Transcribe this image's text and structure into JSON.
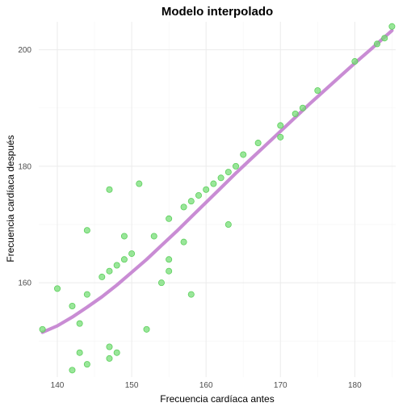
{
  "chart_data": {
    "type": "scatter",
    "title": "Modelo interpolado",
    "xlabel": "Frecuencia cardíaca antes",
    "ylabel": "Frecuencia cardíaca después",
    "xlim": [
      137.5,
      185.5
    ],
    "ylim": [
      143.8,
      204.8
    ],
    "x_ticks": [
      140,
      150,
      160,
      170,
      180
    ],
    "y_ticks": [
      160,
      180,
      200
    ],
    "grid": true,
    "legend": "none",
    "colors": {
      "points": "#77dd77",
      "points_edge": "#5ccf5c",
      "line": "#c37fcf"
    },
    "points": [
      {
        "x": 138,
        "y": 152
      },
      {
        "x": 140,
        "y": 159
      },
      {
        "x": 142,
        "y": 145
      },
      {
        "x": 142,
        "y": 156
      },
      {
        "x": 143,
        "y": 148
      },
      {
        "x": 143,
        "y": 153
      },
      {
        "x": 144,
        "y": 146
      },
      {
        "x": 144,
        "y": 158
      },
      {
        "x": 144,
        "y": 169
      },
      {
        "x": 146,
        "y": 161
      },
      {
        "x": 147,
        "y": 147
      },
      {
        "x": 147,
        "y": 149
      },
      {
        "x": 147,
        "y": 162
      },
      {
        "x": 147,
        "y": 176
      },
      {
        "x": 148,
        "y": 148
      },
      {
        "x": 148,
        "y": 163
      },
      {
        "x": 149,
        "y": 164
      },
      {
        "x": 149,
        "y": 168
      },
      {
        "x": 150,
        "y": 165
      },
      {
        "x": 151,
        "y": 177
      },
      {
        "x": 152,
        "y": 152
      },
      {
        "x": 153,
        "y": 168
      },
      {
        "x": 154,
        "y": 160
      },
      {
        "x": 155,
        "y": 162
      },
      {
        "x": 155,
        "y": 164
      },
      {
        "x": 155,
        "y": 171
      },
      {
        "x": 157,
        "y": 167
      },
      {
        "x": 157,
        "y": 173
      },
      {
        "x": 158,
        "y": 158
      },
      {
        "x": 158,
        "y": 174
      },
      {
        "x": 159,
        "y": 175
      },
      {
        "x": 160,
        "y": 176
      },
      {
        "x": 161,
        "y": 177
      },
      {
        "x": 162,
        "y": 178
      },
      {
        "x": 163,
        "y": 170
      },
      {
        "x": 163,
        "y": 179
      },
      {
        "x": 164,
        "y": 180
      },
      {
        "x": 165,
        "y": 182
      },
      {
        "x": 167,
        "y": 184
      },
      {
        "x": 170,
        "y": 185
      },
      {
        "x": 170,
        "y": 187
      },
      {
        "x": 172,
        "y": 189
      },
      {
        "x": 173,
        "y": 190
      },
      {
        "x": 175,
        "y": 193
      },
      {
        "x": 180,
        "y": 198
      },
      {
        "x": 183,
        "y": 201
      },
      {
        "x": 184,
        "y": 202
      },
      {
        "x": 185,
        "y": 204
      }
    ],
    "fit_line": [
      {
        "x": 138,
        "y": 151.5
      },
      {
        "x": 140,
        "y": 152.6
      },
      {
        "x": 142,
        "y": 154.1
      },
      {
        "x": 144,
        "y": 155.8
      },
      {
        "x": 146,
        "y": 157.6
      },
      {
        "x": 148,
        "y": 159.6
      },
      {
        "x": 150,
        "y": 161.8
      },
      {
        "x": 152,
        "y": 164.0
      },
      {
        "x": 154,
        "y": 166.4
      },
      {
        "x": 156,
        "y": 168.8
      },
      {
        "x": 158,
        "y": 171.3
      },
      {
        "x": 160,
        "y": 173.8
      },
      {
        "x": 162,
        "y": 176.3
      },
      {
        "x": 164,
        "y": 178.8
      },
      {
        "x": 166,
        "y": 181.2
      },
      {
        "x": 168,
        "y": 183.6
      },
      {
        "x": 170,
        "y": 186.0
      },
      {
        "x": 172,
        "y": 188.4
      },
      {
        "x": 174,
        "y": 190.8
      },
      {
        "x": 176,
        "y": 193.1
      },
      {
        "x": 178,
        "y": 195.4
      },
      {
        "x": 180,
        "y": 197.7
      },
      {
        "x": 182,
        "y": 199.9
      },
      {
        "x": 185,
        "y": 203.3
      }
    ]
  }
}
